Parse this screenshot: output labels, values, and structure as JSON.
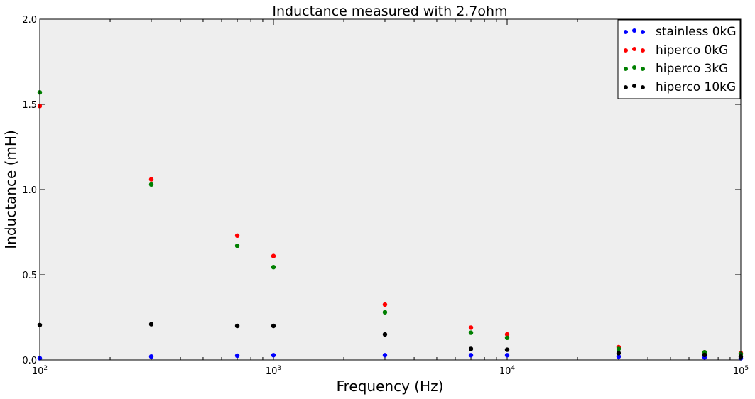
{
  "chart_data": {
    "type": "scatter",
    "title": "Inductance measured with 2.7ohm",
    "xlabel": "Frequency (Hz)",
    "ylabel": "Inductance (mH)",
    "xscale": "log",
    "xlim": [
      100,
      100000
    ],
    "ylim": [
      0.0,
      2.0
    ],
    "x_ticks": [
      {
        "value": 100,
        "base": "10",
        "exp": "2"
      },
      {
        "value": 1000,
        "base": "10",
        "exp": "3"
      },
      {
        "value": 10000,
        "base": "10",
        "exp": "4"
      },
      {
        "value": 100000,
        "base": "10",
        "exp": "5"
      }
    ],
    "y_ticks": [
      {
        "value": 0.0,
        "label": "0.0"
      },
      {
        "value": 0.5,
        "label": "0.5"
      },
      {
        "value": 1.0,
        "label": "1.0"
      },
      {
        "value": 1.5,
        "label": "1.5"
      },
      {
        "value": 2.0,
        "label": "2.0"
      }
    ],
    "grid": false,
    "legend_position": "top-right",
    "background": "#eeeeee",
    "x": [
      100,
      300,
      700,
      1000,
      3000,
      7000,
      10000,
      30000,
      70000,
      100000
    ],
    "series": [
      {
        "name": "stainless 0kG",
        "color": "#0000ff",
        "values": [
          0.01,
          0.02,
          0.025,
          0.028,
          0.028,
          0.028,
          0.028,
          0.02,
          0.015,
          0.01
        ]
      },
      {
        "name": "hiperco 0kG",
        "color": "#ff0000",
        "values": [
          1.49,
          1.06,
          0.73,
          0.61,
          0.325,
          0.19,
          0.15,
          0.075,
          0.045,
          0.04
        ]
      },
      {
        "name": "hiperco 3kG",
        "color": "#008000",
        "values": [
          1.57,
          1.03,
          0.67,
          0.545,
          0.28,
          0.16,
          0.13,
          0.065,
          0.045,
          0.035
        ]
      },
      {
        "name": "hiperco 10kG",
        "color": "#000000",
        "values": [
          0.205,
          0.21,
          0.2,
          0.2,
          0.15,
          0.065,
          0.06,
          0.04,
          0.03,
          0.02
        ]
      }
    ]
  }
}
